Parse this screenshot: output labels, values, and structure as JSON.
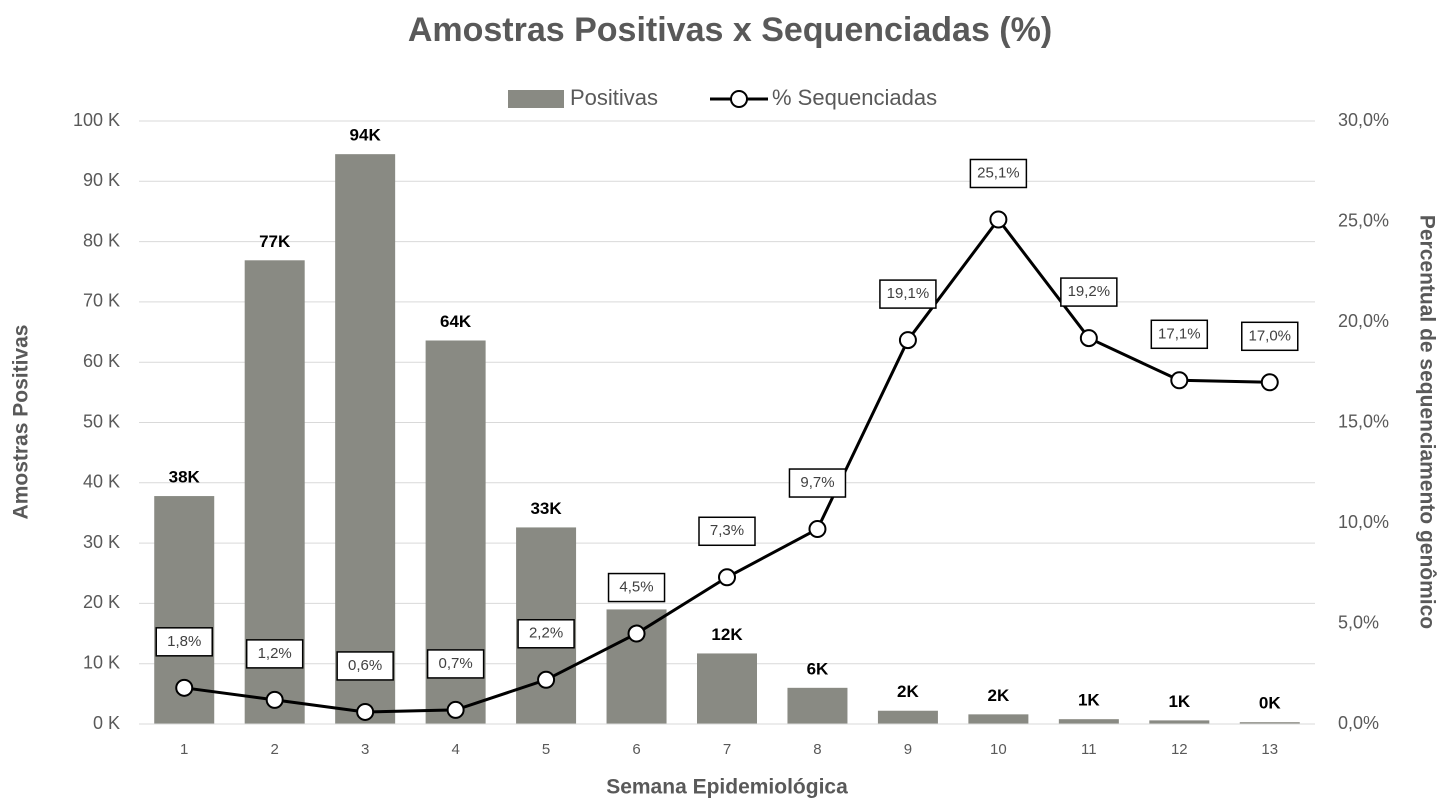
{
  "chart_data": {
    "type": "combo",
    "title": "Amostras Positivas x Sequenciadas (%)",
    "x_label": "Semana Epidemiológica",
    "y_label": "Amostras Positivas",
    "y2_label": "Percentual de sequenciamento genômico",
    "categories": [
      "1",
      "2",
      "3",
      "4",
      "5",
      "6",
      "7",
      "8",
      "9",
      "10",
      "11",
      "12",
      "13"
    ],
    "ylim": [
      0,
      100000
    ],
    "yticks": [
      {
        "value": 0,
        "label": "0 K"
      },
      {
        "value": 10000,
        "label": "10 K"
      },
      {
        "value": 20000,
        "label": "20 K"
      },
      {
        "value": 30000,
        "label": "30 K"
      },
      {
        "value": 40000,
        "label": "40 K"
      },
      {
        "value": 50000,
        "label": "50 K"
      },
      {
        "value": 60000,
        "label": "60 K"
      },
      {
        "value": 70000,
        "label": "70 K"
      },
      {
        "value": 80000,
        "label": "80 K"
      },
      {
        "value": 90000,
        "label": "90 K"
      },
      {
        "value": 100000,
        "label": "100 K"
      }
    ],
    "y2lim": [
      0,
      30
    ],
    "y2ticks": [
      {
        "value": 0,
        "label": "0,0%"
      },
      {
        "value": 5,
        "label": "5,0%"
      },
      {
        "value": 10,
        "label": "10,0%"
      },
      {
        "value": 15,
        "label": "15,0%"
      },
      {
        "value": 20,
        "label": "20,0%"
      },
      {
        "value": 25,
        "label": "25,0%"
      },
      {
        "value": 30,
        "label": "30,0%"
      }
    ],
    "grid": true,
    "legend": "top",
    "series": [
      {
        "name": "Positivas",
        "type": "bar",
        "color": "#898a83",
        "values": [
          37800,
          76900,
          94500,
          63600,
          32600,
          19000,
          11700,
          6000,
          2200,
          1600,
          800,
          600,
          300
        ],
        "value_labels": [
          "38K",
          "77K",
          "94K",
          "64K",
          "33K",
          "19K",
          "12K",
          "6K",
          "2K",
          "2K",
          "1K",
          "1K",
          "0K"
        ]
      },
      {
        "name": "% Sequenciadas",
        "type": "line",
        "axis": "y2",
        "color": "#000000",
        "values": [
          1.8,
          1.2,
          0.6,
          0.7,
          2.2,
          4.5,
          7.3,
          9.7,
          19.1,
          25.1,
          19.2,
          17.1,
          17.0
        ],
        "value_labels": [
          "1,8%",
          "1,2%",
          "0,6%",
          "0,7%",
          "2,2%",
          "4,5%",
          "7,3%",
          "9,7%",
          "19,1%",
          "25,1%",
          "19,2%",
          "17,1%",
          "17,0%"
        ]
      }
    ]
  }
}
